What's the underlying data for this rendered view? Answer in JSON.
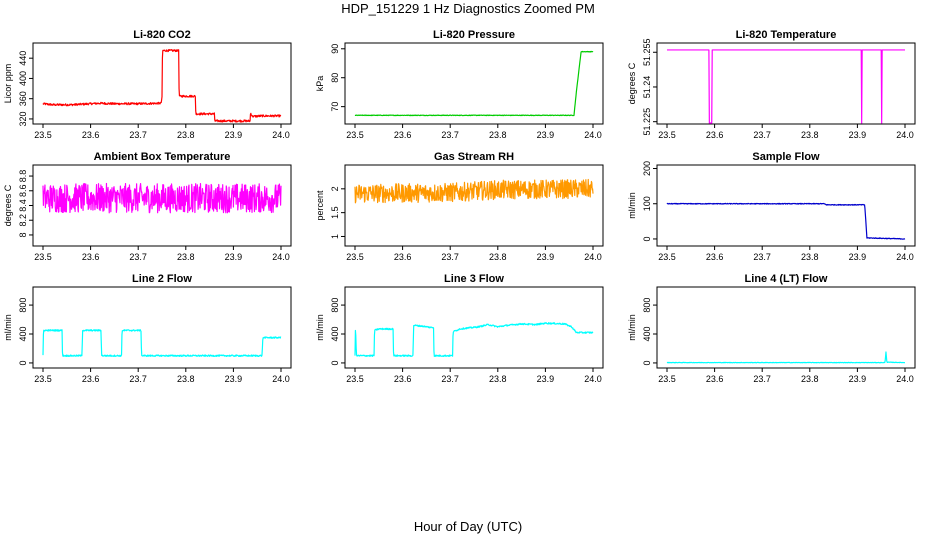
{
  "figure": {
    "title": "HDP_151229  1 Hz Diagnostics Zoomed PM",
    "xlabel": "Hour of Day (UTC)"
  },
  "chart_data": [
    {
      "type": "line",
      "title": "Li-820 CO2",
      "ylabel": "Licor ppm",
      "color": "#ff0000",
      "xlim": [
        23.5,
        24.0
      ],
      "xticks": [
        23.5,
        23.6,
        23.7,
        23.8,
        23.9,
        24.0
      ],
      "ylim": [
        310,
        470
      ],
      "yticks": [
        320,
        360,
        400,
        440
      ],
      "noise": 2,
      "series": [
        {
          "points": [
            [
              23.5,
              350
            ],
            [
              23.52,
              348
            ],
            [
              23.56,
              348
            ],
            [
              23.6,
              350
            ],
            [
              23.62,
              351
            ],
            [
              23.65,
              350
            ],
            [
              23.7,
              350
            ],
            [
              23.748,
              351
            ],
            [
              23.75,
              362
            ],
            [
              23.751,
              455
            ],
            [
              23.785,
              455
            ],
            [
              23.786,
              365
            ],
            [
              23.82,
              365
            ],
            [
              23.821,
              330
            ],
            [
              23.86,
              330
            ],
            [
              23.861,
              316
            ],
            [
              23.935,
              316
            ],
            [
              23.936,
              332
            ],
            [
              23.94,
              325
            ],
            [
              23.96,
              326
            ],
            [
              24.0,
              326
            ]
          ]
        }
      ]
    },
    {
      "type": "line",
      "title": "Li-820 Pressure",
      "ylabel": "kPa",
      "color": "#00cc00",
      "xlim": [
        23.5,
        24.0
      ],
      "xticks": [
        23.5,
        23.6,
        23.7,
        23.8,
        23.9,
        24.0
      ],
      "ylim": [
        64,
        92
      ],
      "yticks": [
        70,
        80,
        90
      ],
      "noise": 0.1,
      "series": [
        {
          "points": [
            [
              23.5,
              67
            ],
            [
              23.95,
              67
            ],
            [
              23.96,
              67
            ],
            [
              23.965,
              75
            ],
            [
              23.97,
              82
            ],
            [
              23.975,
              89
            ],
            [
              24.0,
              89
            ]
          ]
        }
      ]
    },
    {
      "type": "line",
      "title": "Li-820 Temperature",
      "ylabel": "degrees C",
      "color": "#ff00ff",
      "xlim": [
        23.5,
        24.0
      ],
      "xticks": [
        23.5,
        23.6,
        23.7,
        23.8,
        23.9,
        24.0
      ],
      "ylim": [
        51.224,
        51.259
      ],
      "yticks": [
        51.225,
        51.24,
        51.255
      ],
      "noise": 0,
      "series": [
        {
          "points": [
            [
              23.5,
              51.256
            ],
            [
              23.588,
              51.256
            ],
            [
              23.589,
              51.224
            ],
            [
              23.594,
              51.224
            ],
            [
              23.595,
              51.256
            ],
            [
              23.908,
              51.256
            ],
            [
              23.909,
              51.224
            ],
            [
              23.91,
              51.256
            ],
            [
              23.95,
              51.256
            ],
            [
              23.951,
              51.224
            ],
            [
              23.952,
              51.256
            ],
            [
              24.0,
              51.256
            ]
          ]
        }
      ]
    },
    {
      "type": "line",
      "title": "Ambient Box Temperature",
      "ylabel": "degrees C",
      "color": "#ff00ff",
      "xlim": [
        23.5,
        24.0
      ],
      "xticks": [
        23.5,
        23.6,
        23.7,
        23.8,
        23.9,
        24.0
      ],
      "ylim": [
        7.85,
        8.95
      ],
      "yticks": [
        8.0,
        8.2,
        8.4,
        8.6,
        8.8
      ],
      "noise": 0.2,
      "series": [
        {
          "points": [
            [
              23.5,
              8.5
            ],
            [
              24.0,
              8.5
            ]
          ]
        }
      ]
    },
    {
      "type": "line",
      "title": "Gas Stream RH",
      "ylabel": "percent",
      "color": "#ff9900",
      "xlim": [
        23.5,
        24.0
      ],
      "xticks": [
        23.5,
        23.6,
        23.7,
        23.8,
        23.9,
        24.0
      ],
      "ylim": [
        0.8,
        2.5
      ],
      "yticks": [
        1.0,
        1.5,
        2.0
      ],
      "noise": 0.2,
      "series": [
        {
          "points": [
            [
              23.5,
              1.9
            ],
            [
              23.7,
              1.92
            ],
            [
              23.8,
              1.98
            ],
            [
              24.0,
              2.0
            ]
          ]
        }
      ]
    },
    {
      "type": "line",
      "title": "Sample Flow",
      "ylabel": "ml/min",
      "color": "#0000cc",
      "xlim": [
        23.5,
        24.0
      ],
      "xticks": [
        23.5,
        23.6,
        23.7,
        23.8,
        23.9,
        24.0
      ],
      "ylim": [
        -20,
        210
      ],
      "yticks": [
        0,
        100,
        200
      ],
      "noise": 1,
      "series": [
        {
          "points": [
            [
              23.5,
              100
            ],
            [
              23.83,
              100
            ],
            [
              23.835,
              97
            ],
            [
              23.915,
              97
            ],
            [
              23.916,
              85
            ],
            [
              23.92,
              3
            ],
            [
              24.0,
              0
            ]
          ]
        }
      ]
    },
    {
      "type": "line",
      "title": "Line 2 Flow",
      "ylabel": "ml/min",
      "color": "#00ffff",
      "xlim": [
        23.5,
        24.0
      ],
      "xticks": [
        23.5,
        23.6,
        23.7,
        23.8,
        23.9,
        24.0
      ],
      "ylim": [
        -70,
        1050
      ],
      "yticks": [
        0,
        400,
        800
      ],
      "noise": 10,
      "series": [
        {
          "points": [
            [
              23.5,
              100
            ],
            [
              23.501,
              450
            ],
            [
              23.54,
              450
            ],
            [
              23.541,
              100
            ],
            [
              23.582,
              100
            ],
            [
              23.583,
              450
            ],
            [
              23.622,
              450
            ],
            [
              23.623,
              100
            ],
            [
              23.665,
              100
            ],
            [
              23.666,
              450
            ],
            [
              23.706,
              450
            ],
            [
              23.707,
              100
            ],
            [
              23.96,
              100
            ],
            [
              23.962,
              350
            ],
            [
              24.0,
              350
            ]
          ]
        }
      ]
    },
    {
      "type": "line",
      "title": "Line 3 Flow",
      "ylabel": "ml/min",
      "color": "#00ffff",
      "xlim": [
        23.5,
        24.0
      ],
      "xticks": [
        23.5,
        23.6,
        23.7,
        23.8,
        23.9,
        24.0
      ],
      "ylim": [
        -70,
        1050
      ],
      "yticks": [
        0,
        400,
        800
      ],
      "noise": 10,
      "series": [
        {
          "points": [
            [
              23.5,
              100
            ],
            [
              23.501,
              530
            ],
            [
              23.503,
              100
            ],
            [
              23.54,
              100
            ],
            [
              23.541,
              450
            ],
            [
              23.55,
              470
            ],
            [
              23.58,
              470
            ],
            [
              23.581,
              100
            ],
            [
              23.622,
              100
            ],
            [
              23.623,
              520
            ],
            [
              23.64,
              510
            ],
            [
              23.66,
              490
            ],
            [
              23.665,
              490
            ],
            [
              23.666,
              100
            ],
            [
              23.705,
              100
            ],
            [
              23.706,
              430
            ],
            [
              23.72,
              470
            ],
            [
              23.76,
              500
            ],
            [
              23.78,
              530
            ],
            [
              23.8,
              500
            ],
            [
              23.82,
              520
            ],
            [
              23.85,
              540
            ],
            [
              23.88,
              530
            ],
            [
              23.9,
              550
            ],
            [
              23.94,
              540
            ],
            [
              23.955,
              500
            ],
            [
              23.965,
              420
            ],
            [
              24.0,
              420
            ]
          ]
        }
      ]
    },
    {
      "type": "line",
      "title": "Line 4 (LT) Flow",
      "ylabel": "ml/min",
      "color": "#00ffff",
      "xlim": [
        23.5,
        24.0
      ],
      "xticks": [
        23.5,
        23.6,
        23.7,
        23.8,
        23.9,
        24.0
      ],
      "ylim": [
        -70,
        1050
      ],
      "yticks": [
        0,
        400,
        800
      ],
      "noise": 3,
      "series": [
        {
          "points": [
            [
              23.5,
              5
            ],
            [
              23.958,
              5
            ],
            [
              23.96,
              150
            ],
            [
              23.962,
              10
            ],
            [
              24.0,
              5
            ]
          ]
        }
      ]
    }
  ]
}
